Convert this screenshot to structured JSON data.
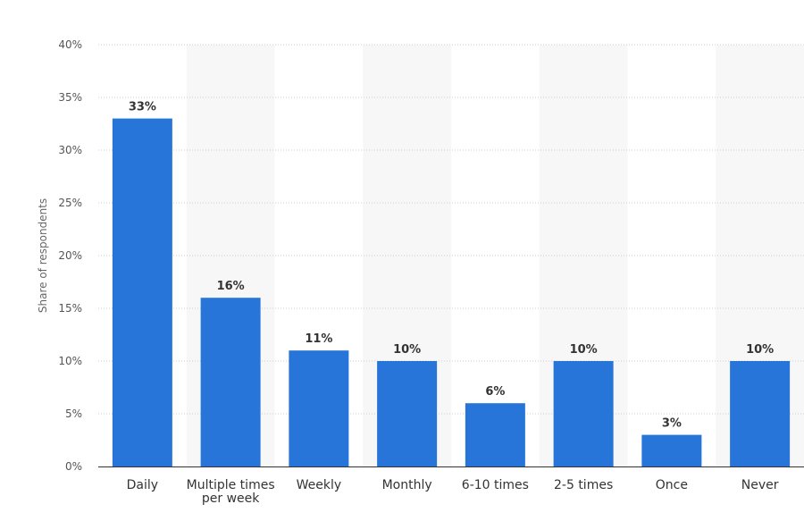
{
  "chart_data": {
    "type": "bar",
    "ylabel": "Share of respondents",
    "categories": [
      [
        "Daily"
      ],
      [
        "Multiple times",
        "per week"
      ],
      [
        "Weekly"
      ],
      [
        "Monthly"
      ],
      [
        "6-10 times"
      ],
      [
        "2-5 times"
      ],
      [
        "Once"
      ],
      [
        "Never"
      ]
    ],
    "values": [
      33,
      16,
      11,
      10,
      6,
      10,
      3,
      10
    ],
    "value_labels": [
      "33%",
      "16%",
      "11%",
      "10%",
      "6%",
      "10%",
      "3%",
      "10%"
    ],
    "ylim": [
      0,
      40
    ],
    "yticks": [
      0,
      5,
      10,
      15,
      20,
      25,
      30,
      35,
      40
    ],
    "ytick_labels": [
      "0%",
      "5%",
      "10%",
      "15%",
      "20%",
      "25%",
      "30%",
      "35%",
      "40%"
    ],
    "grid": true,
    "colors": {
      "bar": "#2875d9",
      "band": "#f7f7f7",
      "grid": "#cccccc",
      "axis": "#333333"
    }
  }
}
